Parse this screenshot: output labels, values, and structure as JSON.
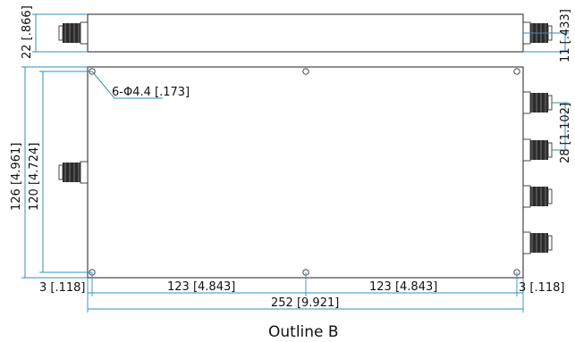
{
  "drawing": {
    "caption": "Outline B",
    "dimensions": {
      "top_height": "22 [.866]",
      "right_connector_offset": "11 [.433]",
      "hole_callout": "6-Φ4.4 [.173]",
      "overall_height": "126 [4.961]",
      "hole_pitch_vertical": "120 [4.724]",
      "connector_pitch": "28 [1.102]",
      "left_edge_offset": "3 [.118]",
      "right_edge_offset": "3 [.118]",
      "left_half_pitch": "123 [4.843]",
      "right_half_pitch": "123 [4.843]",
      "overall_length": "252 [9.921]"
    }
  }
}
